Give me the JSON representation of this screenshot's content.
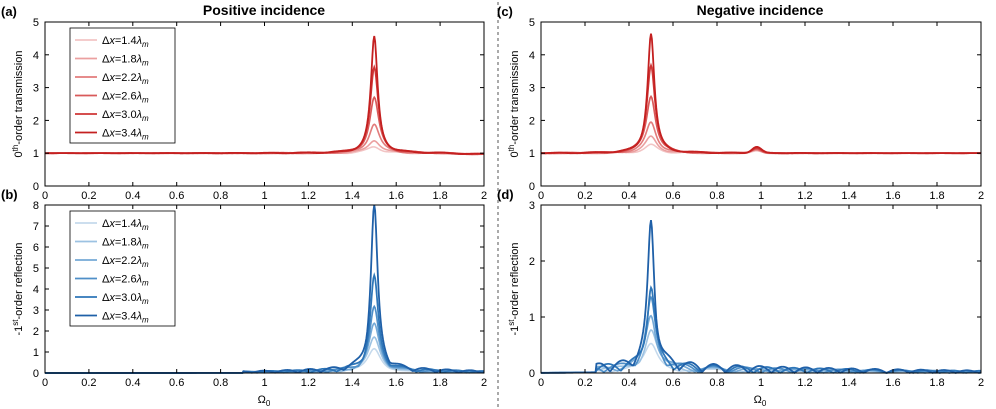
{
  "figure": {
    "left_title": "Positive incidence",
    "right_title": "Negative incidence",
    "xlabel": "Ω",
    "xlabel_sub": "0"
  },
  "chart_data": [
    {
      "id": "a",
      "panel_label": "(a)",
      "type": "line",
      "title": "Positive incidence",
      "ylabel_parts": [
        "0",
        "th",
        "-order transmission"
      ],
      "xlim": [
        0,
        2
      ],
      "ylim": [
        0,
        5
      ],
      "xticks": [
        "0",
        "0.2",
        "0.4",
        "0.6",
        "0.8",
        "1",
        "1.2",
        "1.4",
        "1.6",
        "1.8",
        "2"
      ],
      "yticks": [
        "0",
        "1",
        "2",
        "3",
        "4",
        "5"
      ],
      "palette": "red",
      "legend": true,
      "series": [
        {
          "name": "Δx=1.4λm",
          "dx": 1.4,
          "color": "#f2c4c4",
          "peak_x": 1.5,
          "peak_y": 1.2
        },
        {
          "name": "Δx=1.8λm",
          "dx": 1.8,
          "color": "#eba0a0",
          "peak_x": 1.5,
          "peak_y": 1.4
        },
        {
          "name": "Δx=2.2λm",
          "dx": 2.2,
          "color": "#e27c7c",
          "peak_x": 1.5,
          "peak_y": 1.9
        },
        {
          "name": "Δx=2.6λm",
          "dx": 2.6,
          "color": "#d95a5a",
          "peak_x": 1.5,
          "peak_y": 2.7
        },
        {
          "name": "Δx=3.0λm",
          "dx": 3.0,
          "color": "#cf3636",
          "peak_x": 1.5,
          "peak_y": 3.6
        },
        {
          "name": "Δx=3.4λm",
          "dx": 3.4,
          "color": "#c42020",
          "peak_x": 1.5,
          "peak_y": 4.55
        }
      ]
    },
    {
      "id": "c",
      "panel_label": "(c)",
      "type": "line",
      "title": "Negative incidence",
      "ylabel_parts": [
        "0",
        "th",
        "-order transmission"
      ],
      "xlim": [
        0,
        2
      ],
      "ylim": [
        0,
        5
      ],
      "xticks": [
        "0",
        "0.2",
        "0.4",
        "0.6",
        "0.8",
        "1",
        "1.2",
        "1.4",
        "1.6",
        "1.8",
        "2"
      ],
      "yticks": [
        "0",
        "1",
        "2",
        "3",
        "4",
        "5"
      ],
      "palette": "red",
      "legend": false,
      "series": [
        {
          "name": "Δx=1.4λm",
          "dx": 1.4,
          "color": "#f2c4c4",
          "peak_x": 0.5,
          "peak_y": 1.25
        },
        {
          "name": "Δx=1.8λm",
          "dx": 1.8,
          "color": "#eba0a0",
          "peak_x": 0.5,
          "peak_y": 1.5
        },
        {
          "name": "Δx=2.2λm",
          "dx": 2.2,
          "color": "#e27c7c",
          "peak_x": 0.5,
          "peak_y": 1.95
        },
        {
          "name": "Δx=2.6λm",
          "dx": 2.6,
          "color": "#d95a5a",
          "peak_x": 0.5,
          "peak_y": 2.75
        },
        {
          "name": "Δx=3.0λm",
          "dx": 3.0,
          "color": "#cf3636",
          "peak_x": 0.5,
          "peak_y": 3.7
        },
        {
          "name": "Δx=3.4λm",
          "dx": 3.4,
          "color": "#c42020",
          "peak_x": 0.5,
          "peak_y": 4.65
        }
      ]
    },
    {
      "id": "b",
      "panel_label": "(b)",
      "type": "line",
      "ylabel_parts": [
        "-1",
        "st",
        "-order reflection"
      ],
      "xlim": [
        0,
        2
      ],
      "ylim": [
        0,
        8
      ],
      "xticks": [
        "0",
        "0.2",
        "0.4",
        "0.6",
        "0.8",
        "1",
        "1.2",
        "1.4",
        "1.6",
        "1.8",
        "2"
      ],
      "yticks": [
        "0",
        "1",
        "2",
        "3",
        "4",
        "5",
        "6",
        "7",
        "8"
      ],
      "palette": "blue",
      "legend": true,
      "series": [
        {
          "name": "Δx=1.4λm",
          "dx": 1.4,
          "color": "#c4d9ec",
          "peak_x": 1.5,
          "peak_y": 1.1
        },
        {
          "name": "Δx=1.8λm",
          "dx": 1.8,
          "color": "#9cc2e2",
          "peak_x": 1.5,
          "peak_y": 1.6
        },
        {
          "name": "Δx=2.2λm",
          "dx": 2.2,
          "color": "#74a9d6",
          "peak_x": 1.5,
          "peak_y": 2.2
        },
        {
          "name": "Δx=2.6λm",
          "dx": 2.6,
          "color": "#4f8fc8",
          "peak_x": 1.5,
          "peak_y": 2.95
        },
        {
          "name": "Δx=3.0λm",
          "dx": 3.0,
          "color": "#2e76b8",
          "peak_x": 1.5,
          "peak_y": 4.4
        },
        {
          "name": "Δx=3.4λm",
          "dx": 3.4,
          "color": "#1f60a8",
          "peak_x": 1.5,
          "peak_y": 7.8
        }
      ]
    },
    {
      "id": "d",
      "panel_label": "(d)",
      "type": "line",
      "ylabel_parts": [
        "-1",
        "st",
        "-order reflection"
      ],
      "xlim": [
        0,
        2
      ],
      "ylim": [
        0,
        3
      ],
      "xticks": [
        "0",
        "0.2",
        "0.4",
        "0.6",
        "0.8",
        "1",
        "1.2",
        "1.4",
        "1.6",
        "1.8",
        "2"
      ],
      "yticks": [
        "0",
        "1",
        "2",
        "3"
      ],
      "palette": "blue",
      "legend": false,
      "series": [
        {
          "name": "Δx=1.4λm",
          "dx": 1.4,
          "color": "#c4d9ec",
          "peak_x": 0.5,
          "peak_y": 0.45
        },
        {
          "name": "Δx=1.8λm",
          "dx": 1.8,
          "color": "#9cc2e2",
          "peak_x": 0.5,
          "peak_y": 0.7
        },
        {
          "name": "Δx=2.2λm",
          "dx": 2.2,
          "color": "#74a9d6",
          "peak_x": 0.5,
          "peak_y": 0.97
        },
        {
          "name": "Δx=2.6λm",
          "dx": 2.6,
          "color": "#4f8fc8",
          "peak_x": 0.5,
          "peak_y": 1.2
        },
        {
          "name": "Δx=3.0λm",
          "dx": 3.0,
          "color": "#2e76b8",
          "peak_x": 0.5,
          "peak_y": 1.45
        },
        {
          "name": "Δx=3.4λm",
          "dx": 3.4,
          "color": "#1f60a8",
          "peak_x": 0.5,
          "peak_y": 2.6
        }
      ]
    }
  ]
}
